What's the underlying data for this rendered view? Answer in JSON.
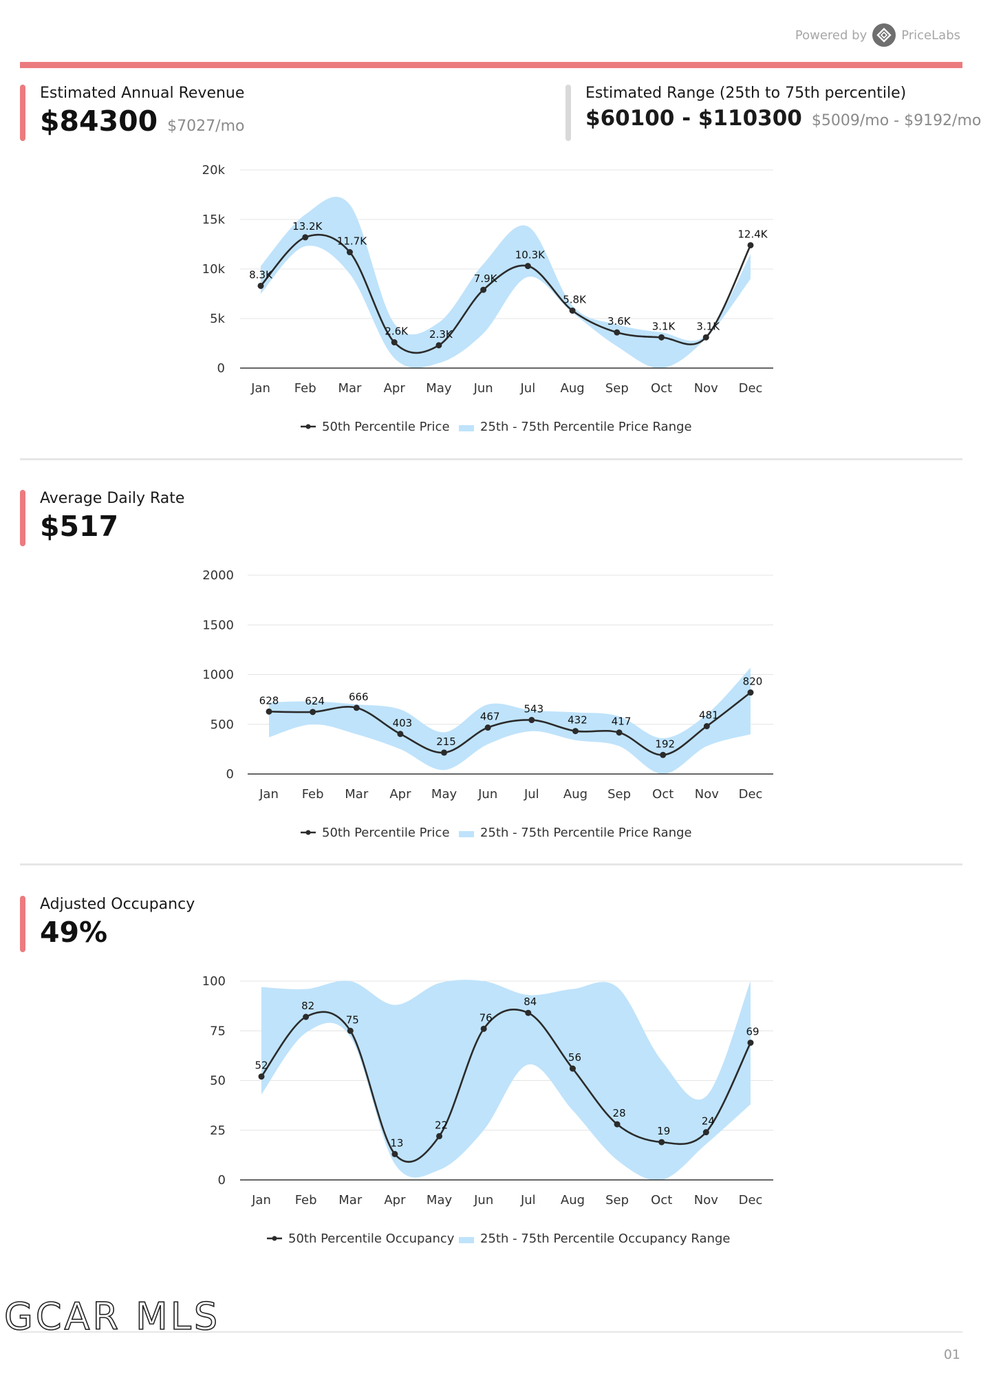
{
  "header": {
    "powered_by": "Powered by",
    "brand": "PriceLabs",
    "logo_icon": "diamond-arrows-icon"
  },
  "accent_color": "#ec7b7f",
  "band_color": "#bfe3fb",
  "revenue": {
    "label": "Estimated Annual Revenue",
    "value": "$84300",
    "monthly": "$7027/mo",
    "range_label": "Estimated Range (25th to 75th percentile)",
    "range_value": "$60100 - $110300",
    "range_monthly": "$5009/mo - $9192/mo"
  },
  "adr": {
    "label": "Average Daily Rate",
    "value": "$517"
  },
  "occupancy": {
    "label": "Adjusted Occupancy",
    "value": "49%"
  },
  "chart_data": [
    {
      "type": "line",
      "categories": [
        "Jan",
        "Feb",
        "Mar",
        "Apr",
        "May",
        "Jun",
        "Jul",
        "Aug",
        "Sep",
        "Oct",
        "Nov",
        "Dec"
      ],
      "yticks": [
        "0",
        "5k",
        "10k",
        "15k",
        "20k"
      ],
      "ylim": [
        0,
        20000
      ],
      "grid": true,
      "series": [
        {
          "name": "50th Percentile Price",
          "values": [
            8300,
            13200,
            11700,
            2600,
            2300,
            7900,
            10300,
            5800,
            3600,
            3100,
            3100,
            12400
          ],
          "labels": [
            "8.3K",
            "13.2K",
            "11.7K",
            "2.6K",
            "2.3K",
            "7.9K",
            "10.3K",
            "5.8K",
            "3.6K",
            "3.1K",
            "3.1K",
            "12.4K"
          ]
        }
      ],
      "band": {
        "name": "25th - 75th Percentile Price Range",
        "low": [
          7500,
          12300,
          9500,
          1000,
          500,
          3500,
          9200,
          5600,
          2200,
          0,
          3000,
          9000
        ],
        "high": [
          10300,
          15500,
          16500,
          4500,
          4600,
          10500,
          14300,
          6300,
          4400,
          3600,
          3300,
          11500
        ]
      },
      "legend": "bottom"
    },
    {
      "type": "line",
      "categories": [
        "Jan",
        "Feb",
        "Mar",
        "Apr",
        "May",
        "Jun",
        "Jul",
        "Aug",
        "Sep",
        "Oct",
        "Nov",
        "Dec"
      ],
      "yticks": [
        "0",
        "500",
        "1000",
        "1500",
        "2000"
      ],
      "ylim": [
        0,
        2000
      ],
      "grid": true,
      "series": [
        {
          "name": "50th Percentile Price",
          "values": [
            628,
            624,
            666,
            403,
            215,
            467,
            543,
            432,
            417,
            192,
            481,
            820
          ],
          "labels": [
            "628",
            "624",
            "666",
            "403",
            "215",
            "467",
            "543",
            "432",
            "417",
            "192",
            "481",
            "820"
          ]
        }
      ],
      "band": {
        "name": "25th - 75th Percentile Price Range",
        "low": [
          370,
          500,
          400,
          250,
          40,
          300,
          430,
          340,
          280,
          0,
          280,
          400
        ],
        "high": [
          720,
          730,
          700,
          650,
          420,
          700,
          640,
          620,
          580,
          360,
          600,
          1070
        ]
      },
      "legend": "bottom"
    },
    {
      "type": "line",
      "categories": [
        "Jan",
        "Feb",
        "Mar",
        "Apr",
        "May",
        "Jun",
        "Jul",
        "Aug",
        "Sep",
        "Oct",
        "Nov",
        "Dec"
      ],
      "yticks": [
        "0",
        "25",
        "50",
        "75",
        "100"
      ],
      "ylim": [
        0,
        100
      ],
      "grid": true,
      "series": [
        {
          "name": "50th Percentile Occupancy",
          "values": [
            52,
            82,
            75,
            13,
            22,
            76,
            84,
            56,
            28,
            19,
            24,
            69
          ],
          "labels": [
            "52",
            "82",
            "75",
            "13",
            "22",
            "76",
            "84",
            "56",
            "28",
            "19",
            "24",
            "69"
          ]
        }
      ],
      "band": {
        "name": "25th - 75th Percentile Occupancy Range",
        "low": [
          43,
          74,
          72,
          8,
          5,
          25,
          58,
          35,
          10,
          0,
          18,
          38
        ],
        "high": [
          97,
          96,
          100,
          88,
          99,
          100,
          93,
          96,
          97,
          60,
          42,
          100
        ]
      },
      "legend": "bottom"
    }
  ],
  "footer": {
    "logo_text": "GCAR MLS",
    "page_number": "01"
  }
}
